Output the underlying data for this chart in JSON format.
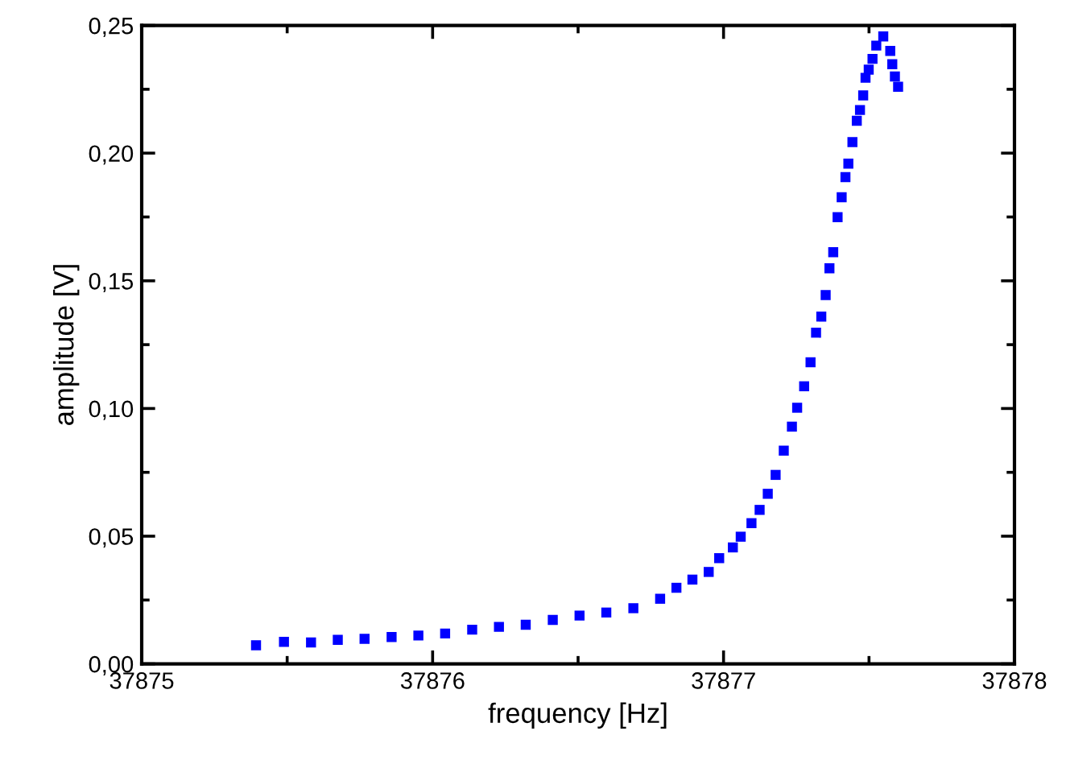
{
  "chart_data": {
    "type": "scatter",
    "xlabel": "frequency [Hz]",
    "ylabel": "amplitude [V]",
    "marker": "square",
    "grid": false,
    "legend": false,
    "xlim": [
      37875,
      37878
    ],
    "xticks": [
      37875,
      37876,
      37877,
      37878
    ],
    "ylim": [
      0,
      0.25
    ],
    "yticks": [
      {
        "value": 0,
        "label": "0,00"
      },
      {
        "value": 0.05,
        "label": "0,05"
      },
      {
        "value": 0.1,
        "label": "0,10"
      },
      {
        "value": 0.15,
        "label": "0,15"
      },
      {
        "value": 0.2,
        "label": "0,20"
      },
      {
        "value": 0.25,
        "label": "0,25"
      }
    ],
    "series": [
      {
        "color": "#0000ff",
        "x": [
          37875.393,
          37875.489,
          37875.582,
          37875.674,
          37875.766,
          37875.859,
          37875.951,
          37876.043,
          37876.136,
          37876.228,
          37876.32,
          37876.413,
          37876.505,
          37876.597,
          37876.69,
          37876.782,
          37876.838,
          37876.893,
          37876.949,
          37876.985,
          37877.032,
          37877.059,
          37877.096,
          37877.124,
          37877.152,
          37877.179,
          37877.207,
          37877.235,
          37877.253,
          37877.277,
          37877.299,
          37877.318,
          37877.336,
          37877.351,
          37877.364,
          37877.377,
          37877.392,
          37877.406,
          37877.419,
          37877.429,
          37877.443,
          37877.458,
          37877.469,
          37877.48,
          37877.488,
          37877.499,
          37877.512,
          37877.525,
          37877.549,
          37877.573,
          37877.58,
          37877.589,
          37877.6
        ],
        "values": [
          0.0073,
          0.0086,
          0.0084,
          0.0094,
          0.0098,
          0.0105,
          0.0111,
          0.0119,
          0.0134,
          0.0145,
          0.0153,
          0.0172,
          0.0189,
          0.0201,
          0.0218,
          0.0255,
          0.0298,
          0.033,
          0.036,
          0.0414,
          0.0456,
          0.0498,
          0.0551,
          0.0603,
          0.0666,
          0.074,
          0.0835,
          0.0929,
          0.1003,
          0.1087,
          0.1181,
          0.1297,
          0.136,
          0.1444,
          0.1549,
          0.1612,
          0.1749,
          0.1827,
          0.1906,
          0.1959,
          0.2043,
          0.2127,
          0.2169,
          0.2226,
          0.2295,
          0.2327,
          0.2369,
          0.2421,
          0.2457,
          0.24,
          0.2348,
          0.23,
          0.226
        ]
      }
    ]
  }
}
